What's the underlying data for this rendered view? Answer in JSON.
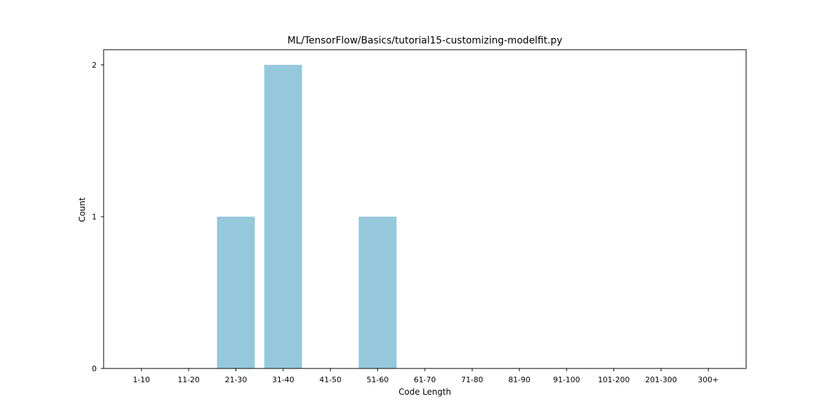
{
  "chart_data": {
    "type": "bar",
    "title": "ML/TensorFlow/Basics/tutorial15-customizing-modelfit.py",
    "xlabel": "Code Length",
    "ylabel": "Count",
    "categories": [
      "1-10",
      "11-20",
      "21-30",
      "31-40",
      "41-50",
      "51-60",
      "61-70",
      "71-80",
      "81-90",
      "91-100",
      "101-200",
      "201-300",
      "300+"
    ],
    "values": [
      0,
      0,
      1,
      2,
      0,
      1,
      0,
      0,
      0,
      0,
      0,
      0,
      0
    ],
    "yticks": [
      "0",
      "1",
      "2"
    ],
    "ylim": [
      0,
      2.1
    ],
    "grid": false,
    "bar_color": "#96c8dc"
  }
}
